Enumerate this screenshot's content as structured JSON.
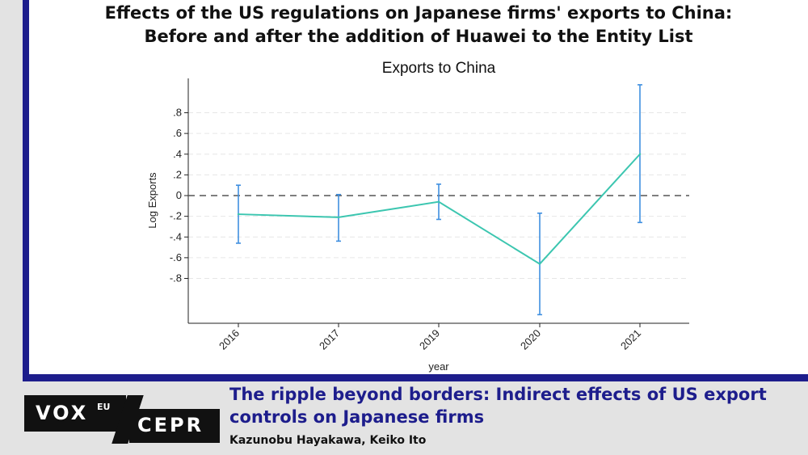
{
  "headline": {
    "line1": "Effects of the US regulations on Japanese firms' exports to China:",
    "line2": "Before and after the addition of Huawei to the Entity List"
  },
  "chart_data": {
    "type": "line",
    "title": "Exports to China",
    "xlabel": "year",
    "ylabel": "Log Exports",
    "categories": [
      "2016",
      "2017",
      "2019",
      "2020",
      "2021"
    ],
    "series": [
      {
        "values": [
          -0.18,
          -0.21,
          -0.06,
          -0.66,
          0.4
        ],
        "ci_lower": [
          -0.46,
          -0.44,
          -0.23,
          -1.15,
          -0.26
        ],
        "ci_upper": [
          0.1,
          0.01,
          0.11,
          -0.17,
          1.07
        ]
      }
    ],
    "y_ticks": [
      0.8,
      0.6,
      0.4,
      0.2,
      0,
      -0.2,
      -0.4,
      -0.6,
      -0.8
    ],
    "y_tick_labels": [
      ".8",
      ".6",
      ".4",
      ".2",
      "0",
      "-.2",
      "-.4",
      "-.6",
      "-.8"
    ],
    "ylim": [
      -1.2,
      1.12
    ],
    "grid": true,
    "reference_line": 0,
    "colors": {
      "line": "#3cc6b0",
      "error_bars": "#3f8fe0",
      "reference": "#555555"
    }
  },
  "footer": {
    "title": "The ripple beyond borders: Indirect effects of US export controls on Japanese firms",
    "authors": "Kazunobu Hayakawa, Keiko Ito"
  },
  "logos": {
    "vox": "VOX",
    "eu": "EU",
    "cepr": "CEPR"
  }
}
